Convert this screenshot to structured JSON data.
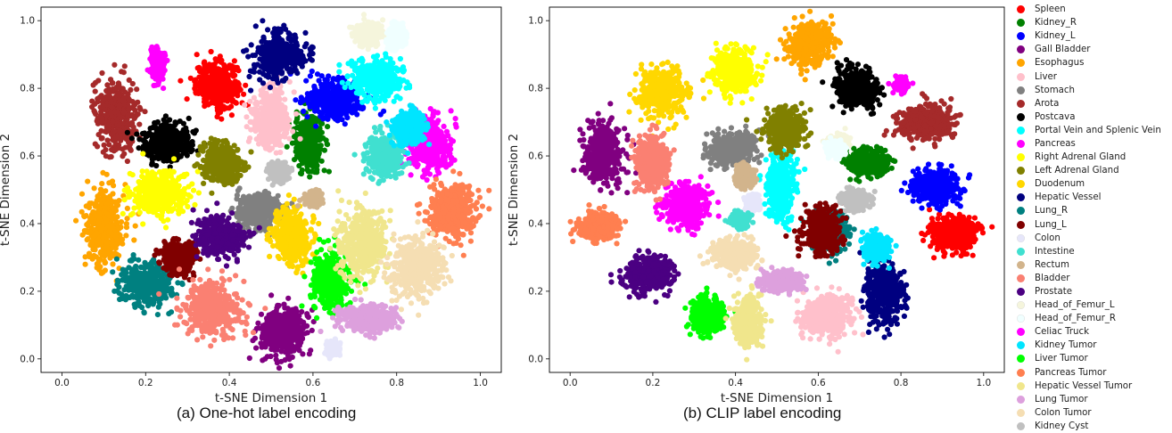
{
  "panels": [
    {
      "caption": "(a) One-hot label encoding"
    },
    {
      "caption": "(b) CLIP label encoding"
    }
  ],
  "legend": [
    {
      "label": "Spleen",
      "color": "#ff0000"
    },
    {
      "label": "Kidney_R",
      "color": "#008000"
    },
    {
      "label": "Kidney_L",
      "color": "#0000ff"
    },
    {
      "label": "Gall Bladder",
      "color": "#800080"
    },
    {
      "label": "Esophagus",
      "color": "#ffa500"
    },
    {
      "label": "Liver",
      "color": "#ffc0cb"
    },
    {
      "label": "Stomach",
      "color": "#808080"
    },
    {
      "label": "Arota",
      "color": "#a52a2a"
    },
    {
      "label": "Postcava",
      "color": "#000000"
    },
    {
      "label": "Portal Vein and Splenic Vein",
      "color": "#00ffff"
    },
    {
      "label": "Pancreas",
      "color": "#ff00ff"
    },
    {
      "label": "Right Adrenal Gland",
      "color": "#ffff00"
    },
    {
      "label": "Left Adrenal Gland",
      "color": "#808000"
    },
    {
      "label": "Duodenum",
      "color": "#ffd700"
    },
    {
      "label": "Hepatic Vessel",
      "color": "#000080"
    },
    {
      "label": "Lung_R",
      "color": "#008080"
    },
    {
      "label": "Lung_L",
      "color": "#800000"
    },
    {
      "label": "Colon",
      "color": "#e6e6fa"
    },
    {
      "label": "Intestine",
      "color": "#40e0d0"
    },
    {
      "label": "Rectum",
      "color": "#d2b48c"
    },
    {
      "label": "Bladder",
      "color": "#fa8072"
    },
    {
      "label": "Prostate",
      "color": "#4b0082"
    },
    {
      "label": "Head_of_Femur_L",
      "color": "#f5f5dc"
    },
    {
      "label": "Head_of_Femur_R",
      "color": "#f0ffff"
    },
    {
      "label": "Celiac Truck",
      "color": "#ff00ff"
    },
    {
      "label": "Kidney Tumor",
      "color": "#00e5ff"
    },
    {
      "label": "Liver Tumor",
      "color": "#00ff00"
    },
    {
      "label": "Pancreas Tumor",
      "color": "#ff7f50"
    },
    {
      "label": "Hepatic Vessel Tumor",
      "color": "#f0e68c"
    },
    {
      "label": "Lung Tumor",
      "color": "#dda0dd"
    },
    {
      "label": "Colon Tumor",
      "color": "#f5deb3"
    },
    {
      "label": "Kidney Cyst",
      "color": "#c0c0c0"
    }
  ],
  "chart_data": [
    {
      "type": "scatter",
      "title": "",
      "xlabel": "t-SNE Dimension 1",
      "ylabel": "t-SNE Dimension 2",
      "xlim": [
        -0.05,
        1.05
      ],
      "ylim": [
        -0.04,
        1.04
      ],
      "xticks": [
        0.0,
        0.2,
        0.4,
        0.6,
        0.8,
        1.0
      ],
      "yticks": [
        0.0,
        0.2,
        0.4,
        0.6,
        0.8,
        1.0
      ],
      "xtick_labels": [
        "0.0",
        "0.2",
        "0.4",
        "0.6",
        "0.8",
        "1.0"
      ],
      "ytick_labels": [
        "0.0",
        "0.2",
        "0.4",
        "0.6",
        "0.8",
        "1.0"
      ],
      "grid": false,
      "series": [
        {
          "name": "Spleen",
          "center": [
            0.37,
            0.81
          ],
          "spread": [
            0.045,
            0.06
          ]
        },
        {
          "name": "Kidney_R",
          "center": [
            0.59,
            0.64
          ],
          "spread": [
            0.03,
            0.075
          ]
        },
        {
          "name": "Kidney_L",
          "center": [
            0.65,
            0.77
          ],
          "spread": [
            0.06,
            0.05
          ]
        },
        {
          "name": "Gall Bladder",
          "center": [
            0.53,
            0.08
          ],
          "spread": [
            0.05,
            0.06
          ]
        },
        {
          "name": "Esophagus",
          "center": [
            0.1,
            0.39
          ],
          "spread": [
            0.04,
            0.1
          ]
        },
        {
          "name": "Liver",
          "center": [
            0.5,
            0.71
          ],
          "spread": [
            0.04,
            0.08
          ]
        },
        {
          "name": "Stomach",
          "center": [
            0.47,
            0.44
          ],
          "spread": [
            0.05,
            0.04
          ]
        },
        {
          "name": "Arota",
          "center": [
            0.13,
            0.72
          ],
          "spread": [
            0.045,
            0.09
          ]
        },
        {
          "name": "Postcava",
          "center": [
            0.25,
            0.64
          ],
          "spread": [
            0.05,
            0.05
          ]
        },
        {
          "name": "Portal Vein and Splenic Vein",
          "center": [
            0.75,
            0.83
          ],
          "spread": [
            0.055,
            0.05
          ]
        },
        {
          "name": "Pancreas",
          "center": [
            0.88,
            0.63
          ],
          "spread": [
            0.045,
            0.07
          ]
        },
        {
          "name": "Right Adrenal Gland",
          "center": [
            0.23,
            0.49
          ],
          "spread": [
            0.06,
            0.055
          ]
        },
        {
          "name": "Left Adrenal Gland",
          "center": [
            0.38,
            0.58
          ],
          "spread": [
            0.04,
            0.05
          ]
        },
        {
          "name": "Duodenum",
          "center": [
            0.55,
            0.36
          ],
          "spread": [
            0.04,
            0.07
          ]
        },
        {
          "name": "Hepatic Vessel",
          "center": [
            0.52,
            0.9
          ],
          "spread": [
            0.05,
            0.06
          ]
        },
        {
          "name": "Lung_R",
          "center": [
            0.2,
            0.22
          ],
          "spread": [
            0.055,
            0.055
          ]
        },
        {
          "name": "Lung_L",
          "center": [
            0.28,
            0.3
          ],
          "spread": [
            0.035,
            0.04
          ]
        },
        {
          "name": "Colon",
          "center": [
            0.65,
            0.03
          ],
          "spread": [
            0.015,
            0.02
          ]
        },
        {
          "name": "Intestine",
          "center": [
            0.77,
            0.6
          ],
          "spread": [
            0.035,
            0.055
          ]
        },
        {
          "name": "Rectum",
          "center": [
            0.6,
            0.47
          ],
          "spread": [
            0.02,
            0.02
          ]
        },
        {
          "name": "Bladder",
          "center": [
            0.36,
            0.15
          ],
          "spread": [
            0.07,
            0.07
          ]
        },
        {
          "name": "Prostate",
          "center": [
            0.38,
            0.36
          ],
          "spread": [
            0.05,
            0.05
          ]
        },
        {
          "name": "Head_of_Femur_L",
          "center": [
            0.73,
            0.96
          ],
          "spread": [
            0.025,
            0.03
          ]
        },
        {
          "name": "Head_of_Femur_R",
          "center": [
            0.8,
            0.95
          ],
          "spread": [
            0.02,
            0.03
          ]
        },
        {
          "name": "Celiac Truck",
          "center": [
            0.23,
            0.87
          ],
          "spread": [
            0.015,
            0.04
          ]
        },
        {
          "name": "Kidney Tumor",
          "center": [
            0.83,
            0.68
          ],
          "spread": [
            0.03,
            0.04
          ]
        },
        {
          "name": "Liver Tumor",
          "center": [
            0.64,
            0.23
          ],
          "spread": [
            0.04,
            0.07
          ]
        },
        {
          "name": "Pancreas Tumor",
          "center": [
            0.93,
            0.44
          ],
          "spread": [
            0.055,
            0.07
          ]
        },
        {
          "name": "Hepatic Vessel Tumor",
          "center": [
            0.72,
            0.34
          ],
          "spread": [
            0.05,
            0.09
          ]
        },
        {
          "name": "Lung Tumor",
          "center": [
            0.73,
            0.12
          ],
          "spread": [
            0.06,
            0.035
          ]
        },
        {
          "name": "Colon Tumor",
          "center": [
            0.85,
            0.27
          ],
          "spread": [
            0.055,
            0.08
          ]
        },
        {
          "name": "Kidney Cyst",
          "center": [
            0.52,
            0.55
          ],
          "spread": [
            0.02,
            0.025
          ]
        }
      ]
    },
    {
      "type": "scatter",
      "title": "",
      "xlabel": "t-SNE Dimension 1",
      "ylabel": "t-SNE Dimension 2",
      "xlim": [
        -0.05,
        1.05
      ],
      "ylim": [
        -0.04,
        1.04
      ],
      "xticks": [
        0.0,
        0.2,
        0.4,
        0.6,
        0.8,
        1.0
      ],
      "yticks": [
        0.0,
        0.2,
        0.4,
        0.6,
        0.8,
        1.0
      ],
      "xtick_labels": [
        "0.0",
        "0.2",
        "0.4",
        "0.6",
        "0.8",
        "1.0"
      ],
      "ytick_labels": [
        "0.0",
        "0.2",
        "0.4",
        "0.6",
        "0.8",
        "1.0"
      ],
      "grid": false,
      "series": [
        {
          "name": "Spleen",
          "center": [
            0.93,
            0.37
          ],
          "spread": [
            0.05,
            0.045
          ]
        },
        {
          "name": "Kidney_R",
          "center": [
            0.72,
            0.58
          ],
          "spread": [
            0.045,
            0.035
          ]
        },
        {
          "name": "Kidney_L",
          "center": [
            0.88,
            0.51
          ],
          "spread": [
            0.055,
            0.045
          ]
        },
        {
          "name": "Gall Bladder",
          "center": [
            0.08,
            0.61
          ],
          "spread": [
            0.04,
            0.08
          ]
        },
        {
          "name": "Esophagus",
          "center": [
            0.58,
            0.93
          ],
          "spread": [
            0.05,
            0.055
          ]
        },
        {
          "name": "Liver",
          "center": [
            0.62,
            0.13
          ],
          "spread": [
            0.05,
            0.055
          ]
        },
        {
          "name": "Stomach",
          "center": [
            0.39,
            0.62
          ],
          "spread": [
            0.05,
            0.04
          ]
        },
        {
          "name": "Arota",
          "center": [
            0.86,
            0.7
          ],
          "spread": [
            0.055,
            0.045
          ]
        },
        {
          "name": "Postcava",
          "center": [
            0.69,
            0.8
          ],
          "spread": [
            0.045,
            0.05
          ]
        },
        {
          "name": "Portal Vein and Splenic Vein",
          "center": [
            0.51,
            0.51
          ],
          "spread": [
            0.03,
            0.09
          ]
        },
        {
          "name": "Pancreas",
          "center": [
            0.28,
            0.45
          ],
          "spread": [
            0.045,
            0.055
          ]
        },
        {
          "name": "Right Adrenal Gland",
          "center": [
            0.4,
            0.85
          ],
          "spread": [
            0.045,
            0.06
          ]
        },
        {
          "name": "Left Adrenal Gland",
          "center": [
            0.52,
            0.68
          ],
          "spread": [
            0.04,
            0.05
          ]
        },
        {
          "name": "Duodenum",
          "center": [
            0.22,
            0.79
          ],
          "spread": [
            0.05,
            0.065
          ]
        },
        {
          "name": "Hepatic Vessel",
          "center": [
            0.76,
            0.2
          ],
          "spread": [
            0.04,
            0.08
          ]
        },
        {
          "name": "Lung_R",
          "center": [
            0.63,
            0.38
          ],
          "spread": [
            0.035,
            0.05
          ]
        },
        {
          "name": "Lung_L",
          "center": [
            0.61,
            0.38
          ],
          "spread": [
            0.04,
            0.06
          ]
        },
        {
          "name": "Colon",
          "center": [
            0.44,
            0.46
          ],
          "spread": [
            0.015,
            0.02
          ]
        },
        {
          "name": "Intestine",
          "center": [
            0.41,
            0.41
          ],
          "spread": [
            0.02,
            0.02
          ]
        },
        {
          "name": "Rectum",
          "center": [
            0.42,
            0.54
          ],
          "spread": [
            0.02,
            0.03
          ]
        },
        {
          "name": "Bladder",
          "center": [
            0.2,
            0.58
          ],
          "spread": [
            0.035,
            0.07
          ]
        },
        {
          "name": "Prostate",
          "center": [
            0.19,
            0.25
          ],
          "spread": [
            0.05,
            0.045
          ]
        },
        {
          "name": "Head_of_Femur_L",
          "center": [
            0.65,
            0.64
          ],
          "spread": [
            0.02,
            0.02
          ]
        },
        {
          "name": "Head_of_Femur_R",
          "center": [
            0.64,
            0.62
          ],
          "spread": [
            0.02,
            0.02
          ]
        },
        {
          "name": "Celiac Truck",
          "center": [
            0.8,
            0.81
          ],
          "spread": [
            0.015,
            0.02
          ]
        },
        {
          "name": "Kidney Tumor",
          "center": [
            0.74,
            0.33
          ],
          "spread": [
            0.025,
            0.035
          ]
        },
        {
          "name": "Liver Tumor",
          "center": [
            0.33,
            0.13
          ],
          "spread": [
            0.035,
            0.045
          ]
        },
        {
          "name": "Pancreas Tumor",
          "center": [
            0.07,
            0.39
          ],
          "spread": [
            0.04,
            0.035
          ]
        },
        {
          "name": "Hepatic Vessel Tumor",
          "center": [
            0.43,
            0.11
          ],
          "spread": [
            0.03,
            0.06
          ]
        },
        {
          "name": "Lung Tumor",
          "center": [
            0.51,
            0.23
          ],
          "spread": [
            0.04,
            0.025
          ]
        },
        {
          "name": "Colon Tumor",
          "center": [
            0.4,
            0.31
          ],
          "spread": [
            0.045,
            0.04
          ]
        },
        {
          "name": "Kidney Cyst",
          "center": [
            0.69,
            0.47
          ],
          "spread": [
            0.03,
            0.025
          ]
        }
      ]
    }
  ]
}
